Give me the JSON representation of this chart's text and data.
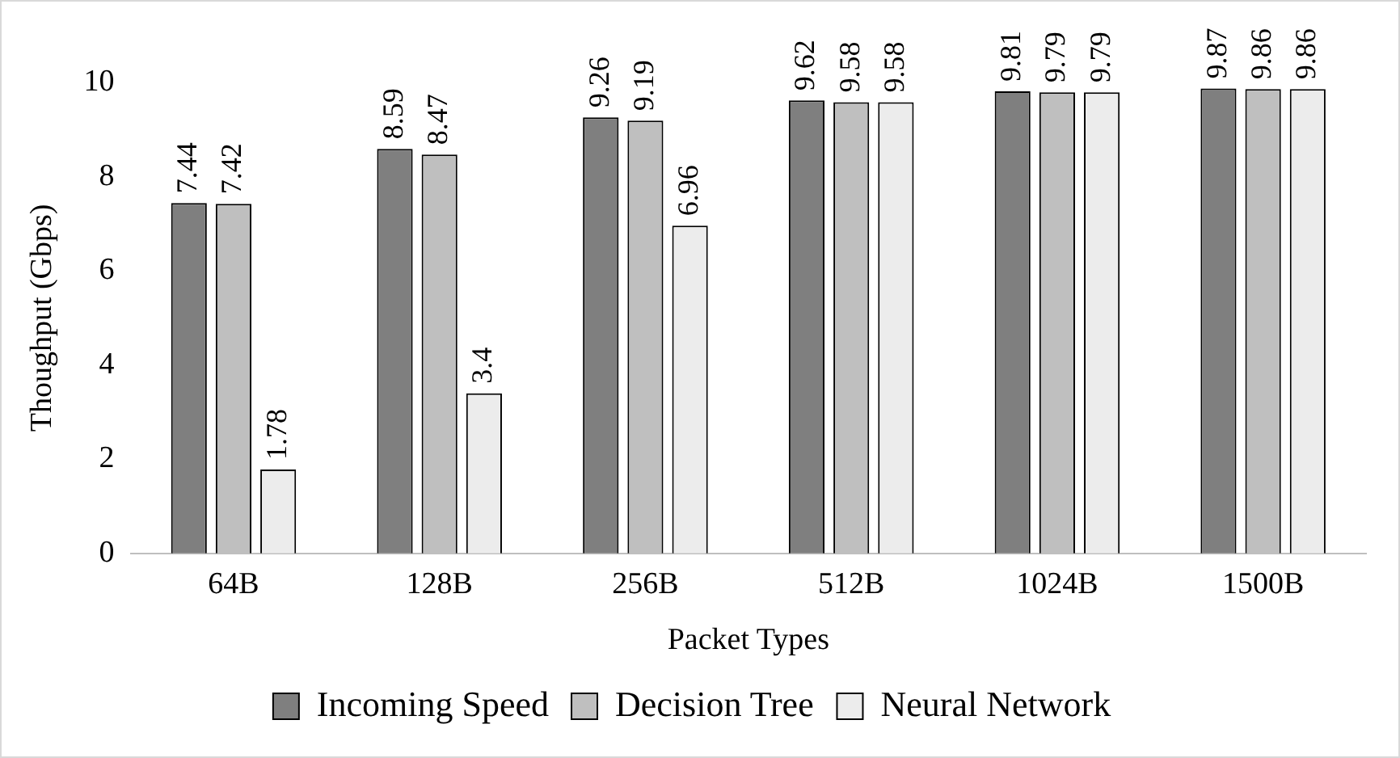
{
  "chart_data": {
    "type": "bar",
    "xlabel": "Packet Types",
    "ylabel": "Thoughput (Gbps)",
    "categories": [
      "64B",
      "128B",
      "256B",
      "512B",
      "1024B",
      "1500B"
    ],
    "series": [
      {
        "name": "Incoming Speed",
        "color": "#7f7f7f",
        "values": [
          7.44,
          8.59,
          9.26,
          9.62,
          9.81,
          9.87
        ]
      },
      {
        "name": "Decision Tree",
        "color": "#bfbfbf",
        "values": [
          7.42,
          8.47,
          9.19,
          9.58,
          9.79,
          9.86
        ]
      },
      {
        "name": "Neural Network",
        "color": "#ececec",
        "values": [
          1.78,
          3.4,
          6.96,
          9.58,
          9.79,
          9.86
        ]
      }
    ],
    "ylim": [
      0,
      10
    ],
    "yticks": [
      0,
      2,
      4,
      6,
      8,
      10
    ],
    "grid": false,
    "legend": "bottom",
    "data_labels": true
  }
}
